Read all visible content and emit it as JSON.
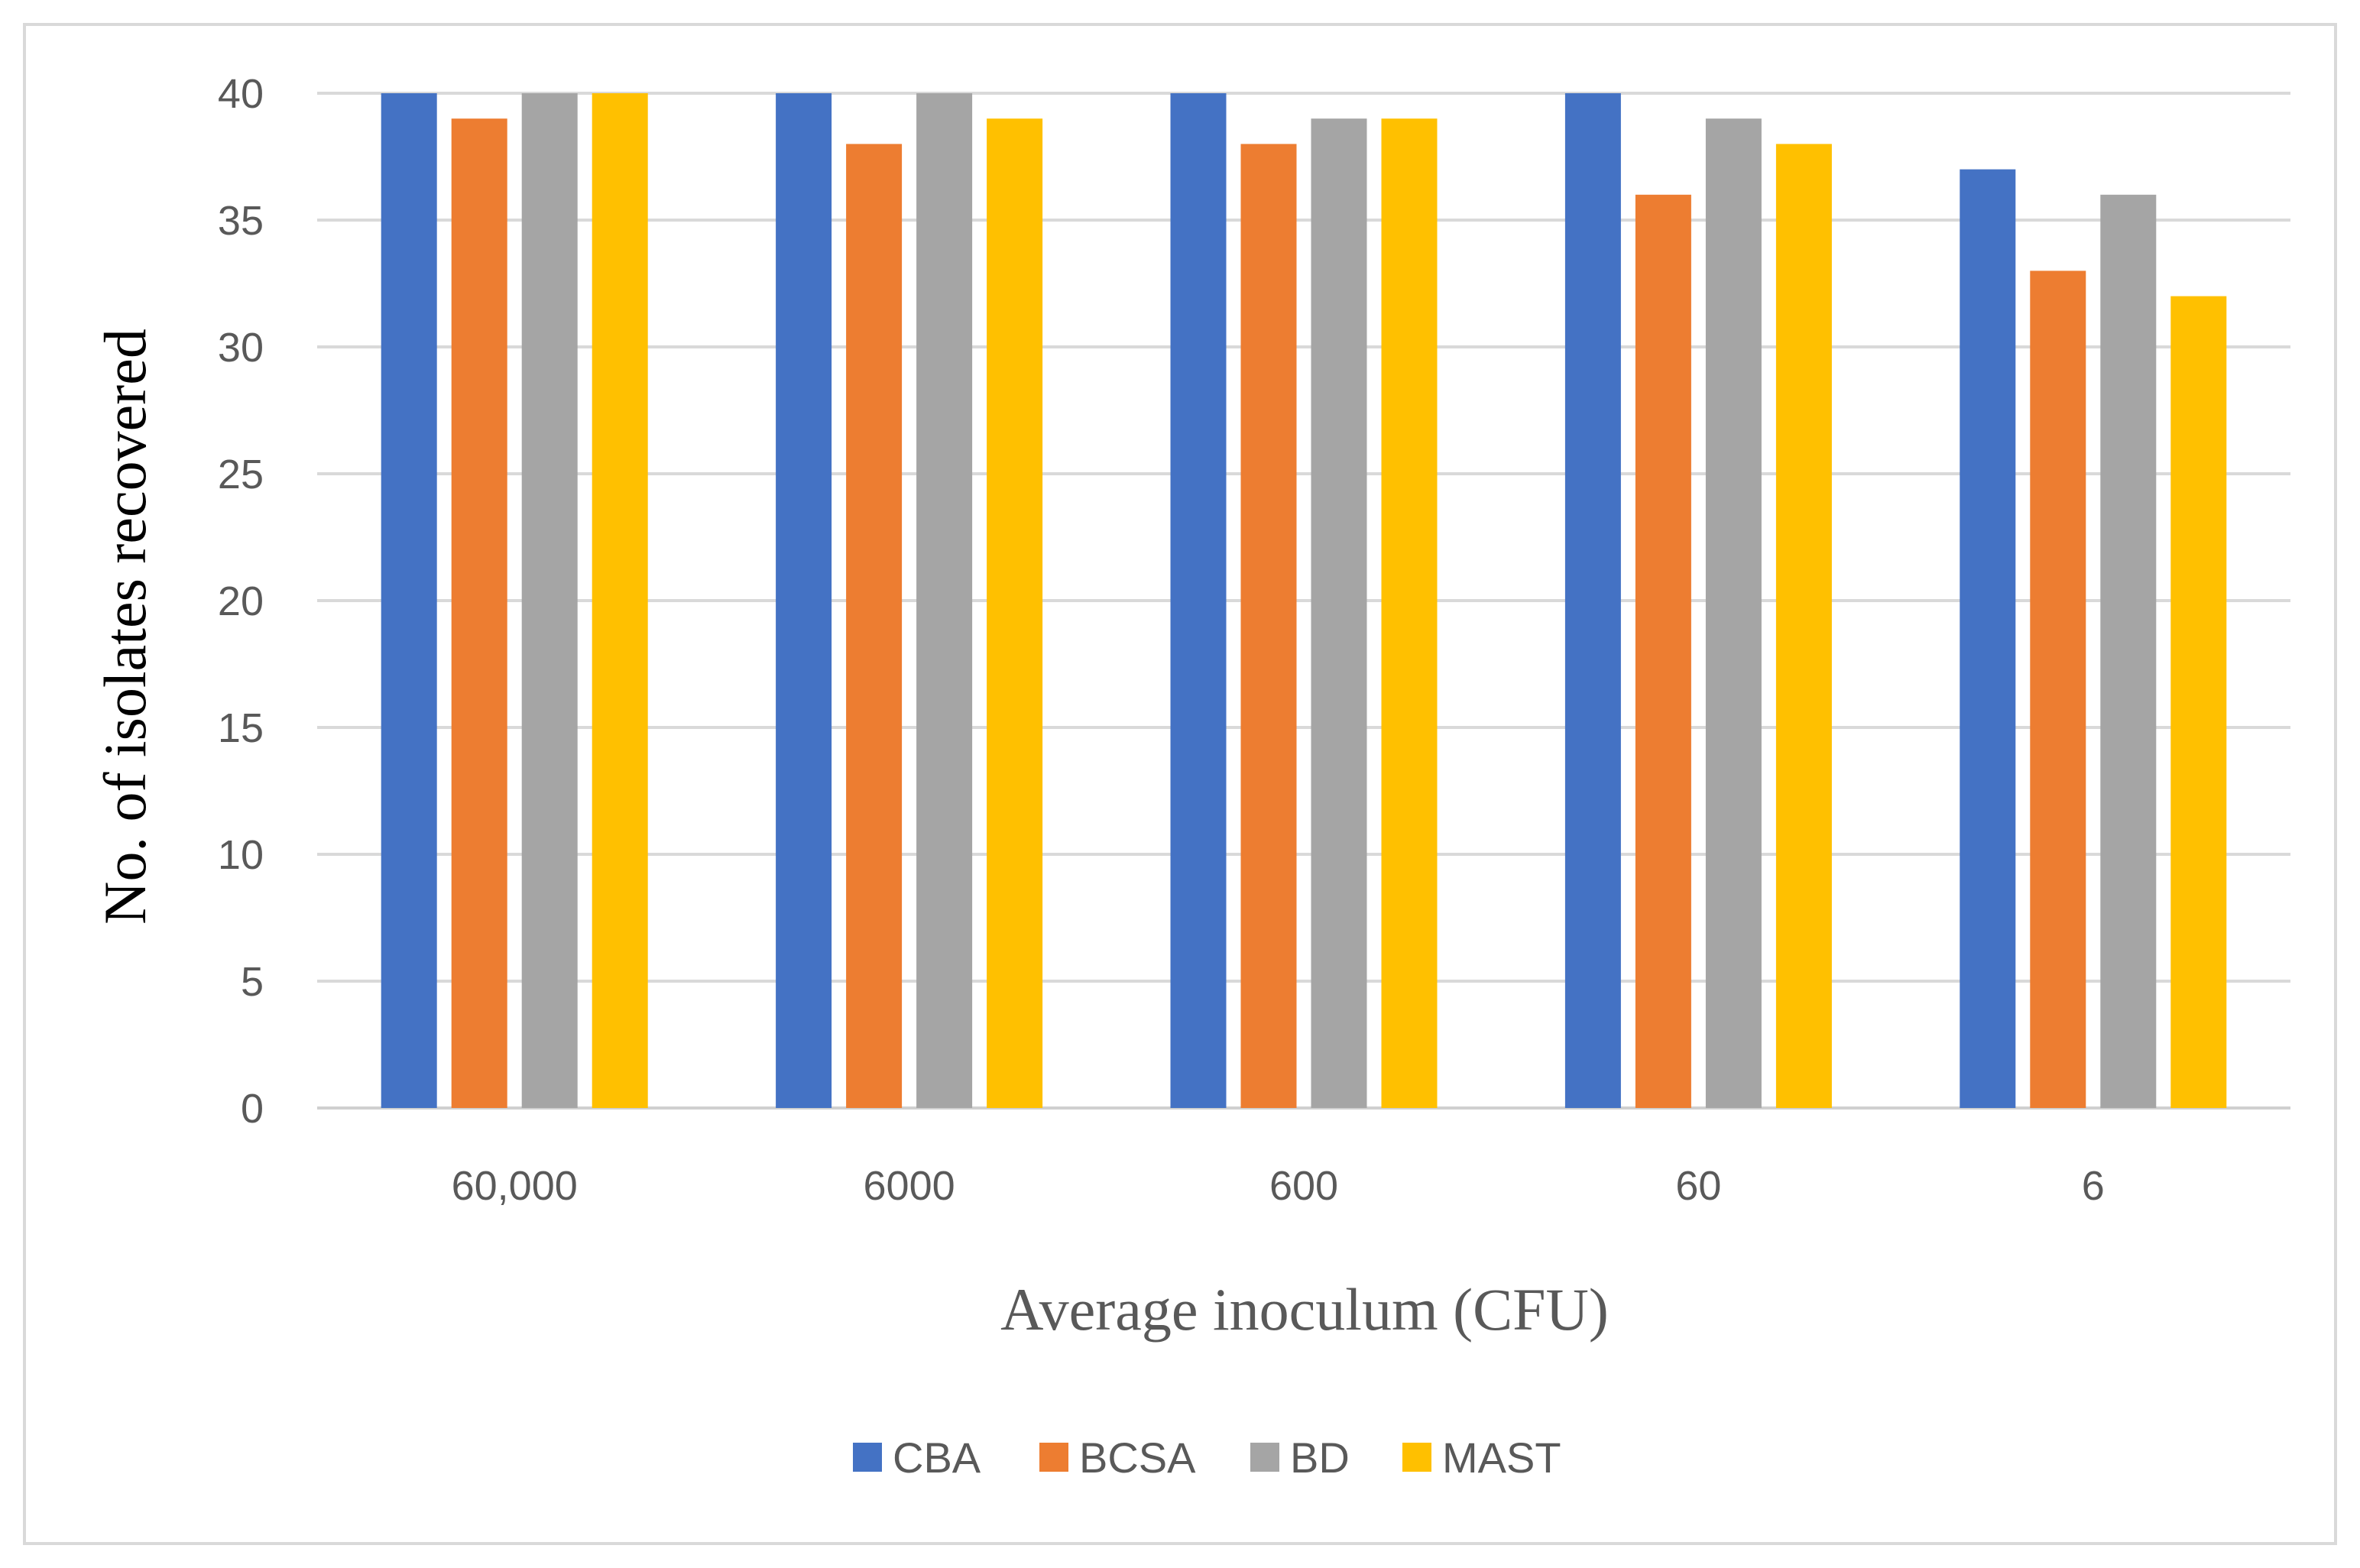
{
  "chart_data": {
    "type": "bar",
    "title": "",
    "xlabel": "Average inoculum (CFU)",
    "ylabel": "No. of isolates recovered",
    "categories": [
      "60,000",
      "6000",
      "600",
      "60",
      "6"
    ],
    "ylim": [
      0,
      40
    ],
    "yticks": [
      0,
      5,
      10,
      15,
      20,
      25,
      30,
      35,
      40
    ],
    "grid": true,
    "legend_position": "bottom",
    "series": [
      {
        "name": "CBA",
        "color": "#4472c4",
        "values": [
          40,
          40,
          40,
          40,
          37
        ]
      },
      {
        "name": "BCSA",
        "color": "#ed7d31",
        "values": [
          39,
          38,
          38,
          36,
          33
        ]
      },
      {
        "name": "BD",
        "color": "#a5a5a5",
        "values": [
          40,
          40,
          39,
          39,
          36
        ]
      },
      {
        "name": "MAST",
        "color": "#ffc000",
        "values": [
          40,
          39,
          39,
          38,
          32
        ]
      }
    ]
  }
}
